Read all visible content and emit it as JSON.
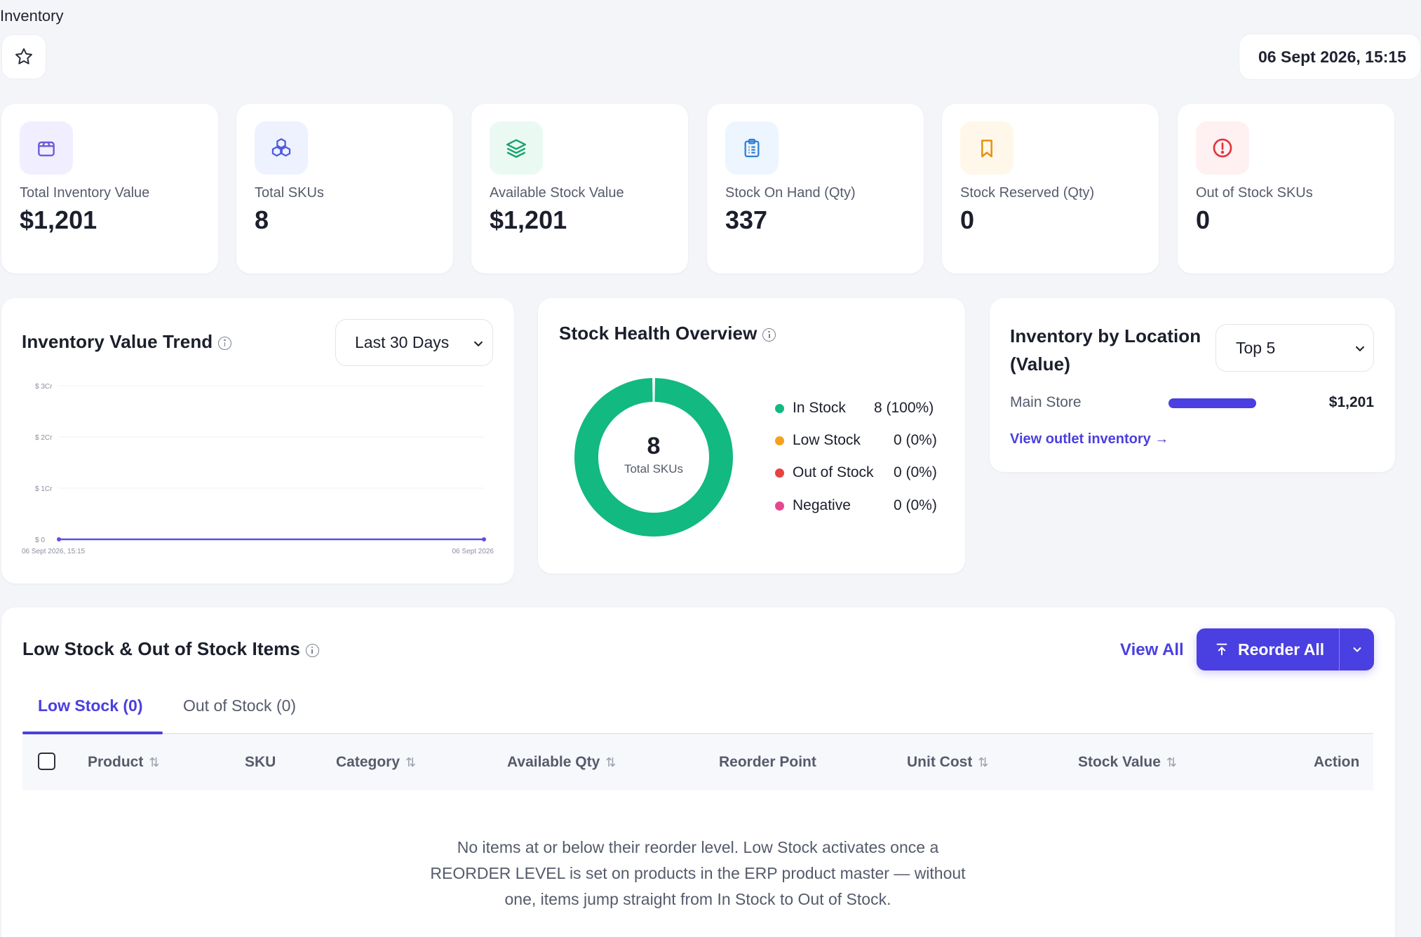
{
  "header": {
    "page_title": "Inventory",
    "datetime": "06 Sept 2026, 15:15"
  },
  "kpis": [
    {
      "label": "Total Inventory Value",
      "value": "$1,201",
      "icon": "package-icon",
      "tint": "#f1efff",
      "color": "#6b5bd6"
    },
    {
      "label": "Total SKUs",
      "value": "8",
      "icon": "cubes-icon",
      "tint": "#eef2ff",
      "color": "#4f5ae0"
    },
    {
      "label": "Available Stock Value",
      "value": "$1,201",
      "icon": "layers-icon",
      "tint": "#eafaf3",
      "color": "#16a36b"
    },
    {
      "label": "Stock On Hand (Qty)",
      "value": "337",
      "icon": "clipboard-icon",
      "tint": "#edf5ff",
      "color": "#2f7fd6"
    },
    {
      "label": "Stock Reserved (Qty)",
      "value": "0",
      "icon": "bookmark-icon",
      "tint": "#fff8ea",
      "color": "#e8920c"
    },
    {
      "label": "Out of Stock SKUs",
      "value": "0",
      "icon": "alert-circle-icon",
      "tint": "#fff0f1",
      "color": "#e0353f"
    }
  ],
  "trend": {
    "title": "Inventory Value Trend",
    "range_label": "Last 30 Days",
    "chart_data": {
      "type": "line",
      "x": [
        "06 Sept 2026, 15:15",
        "06 Sept 2026"
      ],
      "series": [
        {
          "values": [
            0,
            0
          ]
        }
      ],
      "y_ticks": [
        "$ 3Cr",
        "$ 2Cr",
        "$ 1Cr",
        "$ 0"
      ],
      "ylim": [
        0,
        30000000
      ],
      "grid": true,
      "color": "#5b4fe0"
    }
  },
  "health": {
    "title": "Stock Health Overview",
    "center_value": "8",
    "center_label": "Total SKUs",
    "chart_data": {
      "type": "pie",
      "categories": [
        "In Stock",
        "Low Stock",
        "Out of Stock",
        "Negative"
      ],
      "values": [
        8,
        0,
        0,
        0
      ],
      "labels": [
        "8 (100%)",
        "0 (0%)",
        "0 (0%)",
        "0 (0%)"
      ],
      "colors": [
        "#12b981",
        "#f4a21b",
        "#e8423f",
        "#e8478f"
      ]
    }
  },
  "location": {
    "title_line1": "Inventory by Location",
    "title_line2": "(Value)",
    "range_label": "Top 5",
    "rows": [
      {
        "name": "Main Store",
        "value": "$1,201",
        "fraction": 1.0
      }
    ],
    "link": "View outlet inventory →"
  },
  "low_stock": {
    "title": "Low Stock & Out of Stock Items",
    "view_all": "View All",
    "reorder_label": "Reorder All",
    "tabs": [
      {
        "label": "Low Stock (0)",
        "active": true
      },
      {
        "label": "Out of Stock (0)",
        "active": false
      }
    ],
    "columns": [
      "Product",
      "SKU",
      "Category",
      "Available Qty",
      "Reorder Point",
      "Unit Cost",
      "Stock Value",
      "Action"
    ],
    "empty_line1": "No items at or below their reorder level. Low Stock activates once a",
    "empty_line2": "REORDER LEVEL is set on products in the ERP product master — without",
    "empty_line3": "one, items jump straight from In Stock to Out of Stock."
  },
  "accent": "#4a3fe0"
}
